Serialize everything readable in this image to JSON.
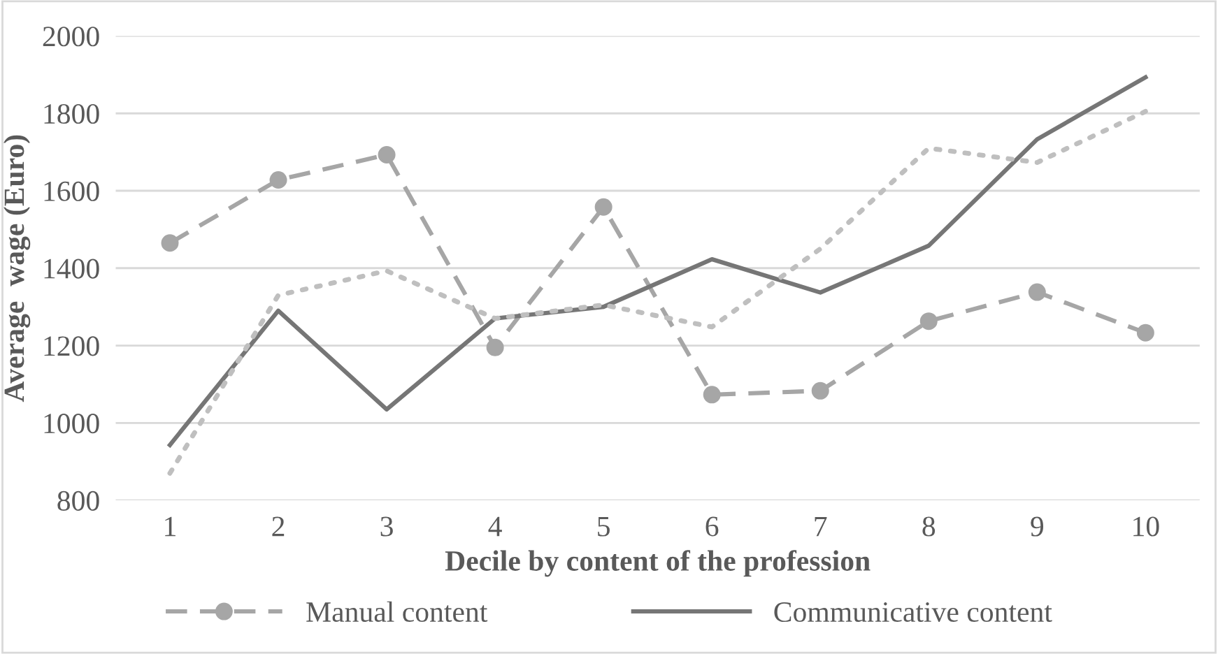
{
  "chart_data": {
    "type": "line",
    "xlabel": "Decile by content of the profession",
    "ylabel": "Average  wage (Euro)",
    "categories": [
      "1",
      "2",
      "3",
      "4",
      "5",
      "6",
      "7",
      "8",
      "9",
      "10"
    ],
    "series": [
      {
        "name": "Manual content",
        "color": "#a6a6a6",
        "marker": "circle",
        "line_style": "dashed",
        "values": [
          1465,
          1628,
          1693,
          1195,
          1558,
          1073,
          1083,
          1263,
          1338,
          1233
        ]
      },
      {
        "name": "Communicative content",
        "color": "#767676",
        "marker": "none",
        "line_style": "solid",
        "values": [
          943,
          1290,
          1035,
          1270,
          1300,
          1423,
          1337,
          1458,
          1733,
          1893
        ]
      },
      {
        "color": "#bfbfbf",
        "marker": "none",
        "line_style": "dotted",
        "values": [
          870,
          1330,
          1393,
          1270,
          1305,
          1248,
          1450,
          1710,
          1673,
          1805
        ]
      }
    ],
    "ylim": [
      800,
      2000
    ],
    "yticks": [
      800,
      1000,
      1200,
      1400,
      1600,
      1800,
      2000
    ],
    "grid": "y",
    "legend": "bottom"
  }
}
